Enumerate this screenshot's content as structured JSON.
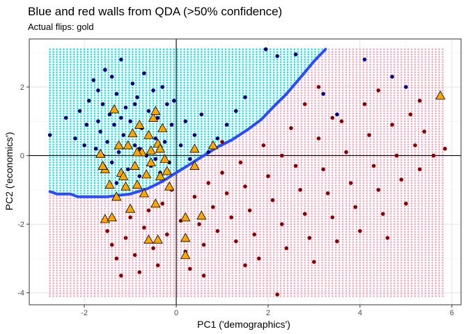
{
  "chart_data": {
    "type": "scatter",
    "title": "Blue and red walls from QDA (>50% confidence)",
    "subtitle": "Actual flips: gold",
    "xlabel": "PC1 ('demographics')",
    "ylabel": "PC2 ('economics')",
    "xlim": [
      -3.2,
      6.2
    ],
    "ylim": [
      -4.35,
      3.4
    ],
    "x_ticks": [
      -2,
      0,
      2,
      4,
      6
    ],
    "y_ticks": [
      -4,
      -2,
      0,
      2
    ],
    "grid": true,
    "reference_lines": {
      "x": 0,
      "y": 0
    },
    "colors": {
      "blue_region": "#00e5ee",
      "red_region": "#f4a3b8",
      "blue_points": "#000080",
      "red_points": "#8b0000",
      "flips": "#ffa500",
      "boundary": "#2b4bff"
    },
    "regions": {
      "x_range": [
        -2.75,
        5.85
      ],
      "y_range": [
        -4.1,
        3.1
      ],
      "step": 0.075
    },
    "boundary": [
      [
        -2.75,
        -1.05
      ],
      [
        -2.6,
        -1.12
      ],
      [
        -2.3,
        -1.12
      ],
      [
        -2.15,
        -1.2
      ],
      [
        -1.5,
        -1.2
      ],
      [
        -1.0,
        -1.12
      ],
      [
        -0.6,
        -0.95
      ],
      [
        -0.3,
        -0.75
      ],
      [
        0.0,
        -0.5
      ],
      [
        0.3,
        -0.25
      ],
      [
        0.6,
        0.0
      ],
      [
        0.9,
        0.25
      ],
      [
        1.2,
        0.45
      ],
      [
        1.55,
        0.75
      ],
      [
        1.85,
        1.05
      ],
      [
        2.1,
        1.4
      ],
      [
        2.4,
        1.8
      ],
      [
        2.75,
        2.35
      ],
      [
        3.0,
        2.75
      ],
      [
        3.25,
        3.1
      ]
    ],
    "series": [
      {
        "values": [
          [
            -2.75,
            0.6
          ],
          [
            -2.4,
            1.1
          ],
          [
            -2.2,
            0.5
          ],
          [
            -2.0,
            0.3
          ],
          [
            -1.9,
            1.6
          ],
          [
            -1.8,
            2.2
          ],
          [
            -1.75,
            0.2
          ],
          [
            -1.7,
            1.0
          ],
          [
            -1.65,
            0.7
          ],
          [
            -1.6,
            1.5
          ],
          [
            -1.55,
            2.5
          ],
          [
            -1.5,
            0.4
          ],
          [
            -1.45,
            1.2
          ],
          [
            -1.4,
            -0.2
          ],
          [
            -1.35,
            0.9
          ],
          [
            -1.3,
            1.8
          ],
          [
            -1.25,
            0.1
          ],
          [
            -1.2,
            2.8
          ],
          [
            -1.15,
            0.6
          ],
          [
            -1.1,
            1.4
          ],
          [
            -1.05,
            -0.4
          ],
          [
            -1.0,
            1.0
          ],
          [
            -0.95,
            2.1
          ],
          [
            -0.9,
            0.3
          ],
          [
            -0.85,
            1.7
          ],
          [
            -0.8,
            -0.6
          ],
          [
            -0.75,
            0.8
          ],
          [
            -0.7,
            2.4
          ],
          [
            -0.65,
            0.0
          ],
          [
            -0.6,
            1.3
          ],
          [
            -0.55,
            -0.3
          ],
          [
            -0.5,
            1.9
          ],
          [
            -0.45,
            0.5
          ],
          [
            -0.4,
            1.1
          ],
          [
            -0.35,
            -0.5
          ],
          [
            -0.3,
            2.0
          ],
          [
            -0.25,
            0.4
          ],
          [
            -0.2,
            1.5
          ],
          [
            -0.15,
            -0.2
          ],
          [
            -0.1,
            0.9
          ],
          [
            -0.05,
            1.6
          ],
          [
            0.1,
            0.3
          ],
          [
            0.2,
            1.0
          ],
          [
            0.3,
            -0.1
          ],
          [
            0.4,
            0.6
          ],
          [
            0.55,
            1.2
          ],
          [
            0.7,
            0.1
          ],
          [
            0.9,
            0.5
          ],
          [
            1.1,
            0.9
          ],
          [
            1.3,
            1.3
          ],
          [
            1.5,
            1.7
          ],
          [
            1.95,
            3.1
          ],
          [
            2.2,
            2.9
          ],
          [
            2.6,
            2.95
          ],
          [
            3.2,
            1.8
          ],
          [
            3.5,
            1.2
          ],
          [
            4.1,
            2.8
          ],
          [
            4.7,
            2.3
          ],
          [
            5.0,
            2.0
          ],
          [
            -1.3,
            -0.8
          ],
          [
            -1.6,
            0.0
          ],
          [
            -1.95,
            0.9
          ],
          [
            -2.1,
            1.3
          ],
          [
            -0.6,
            0.6
          ],
          [
            -0.9,
            1.5
          ],
          [
            -1.2,
            1.1
          ],
          [
            -1.7,
            1.9
          ],
          [
            -1.4,
            2.3
          ],
          [
            -0.8,
            0.2
          ],
          [
            -0.45,
            -0.1
          ]
        ]
      },
      {
        "values": [
          [
            -1.5,
            -2.2
          ],
          [
            -1.4,
            -2.6
          ],
          [
            -1.3,
            -3.0
          ],
          [
            -1.2,
            -3.5
          ],
          [
            -1.1,
            -2.4
          ],
          [
            -1.0,
            -1.8
          ],
          [
            -0.9,
            -2.9
          ],
          [
            -0.8,
            -3.4
          ],
          [
            -0.7,
            -2.1
          ],
          [
            -0.6,
            -1.6
          ],
          [
            -0.5,
            -2.7
          ],
          [
            -0.4,
            -3.2
          ],
          [
            -0.3,
            -1.4
          ],
          [
            -0.2,
            -2.3
          ],
          [
            -0.1,
            -1.0
          ],
          [
            0.1,
            -1.9
          ],
          [
            0.2,
            -2.8
          ],
          [
            0.3,
            -3.3
          ],
          [
            0.4,
            -1.2
          ],
          [
            0.5,
            -2.0
          ],
          [
            0.6,
            -2.6
          ],
          [
            0.7,
            -0.8
          ],
          [
            0.8,
            -1.5
          ],
          [
            0.9,
            -2.2
          ],
          [
            1.0,
            -0.5
          ],
          [
            1.1,
            -1.1
          ],
          [
            1.2,
            -1.8
          ],
          [
            1.3,
            -2.5
          ],
          [
            1.4,
            -0.2
          ],
          [
            1.5,
            -0.9
          ],
          [
            1.6,
            -1.6
          ],
          [
            1.7,
            -2.3
          ],
          [
            1.8,
            -3.0
          ],
          [
            1.9,
            0.3
          ],
          [
            2.0,
            -0.6
          ],
          [
            2.1,
            -1.3
          ],
          [
            2.2,
            -4.05
          ],
          [
            2.3,
            -2.0
          ],
          [
            2.4,
            -2.7
          ],
          [
            2.5,
            0.8
          ],
          [
            2.6,
            -0.3
          ],
          [
            2.7,
            -1.0
          ],
          [
            2.8,
            -1.7
          ],
          [
            2.9,
            -2.4
          ],
          [
            3.0,
            -3.1
          ],
          [
            3.1,
            0.5
          ],
          [
            3.2,
            -0.4
          ],
          [
            3.3,
            -1.1
          ],
          [
            3.4,
            -1.8
          ],
          [
            3.5,
            -2.5
          ],
          [
            3.6,
            1.0
          ],
          [
            3.7,
            0.1
          ],
          [
            3.8,
            -0.8
          ],
          [
            3.9,
            -1.5
          ],
          [
            4.0,
            -2.2
          ],
          [
            4.1,
            1.5
          ],
          [
            4.2,
            0.6
          ],
          [
            4.3,
            -0.3
          ],
          [
            4.4,
            -1.0
          ],
          [
            4.5,
            -1.7
          ],
          [
            4.6,
            -2.4
          ],
          [
            4.7,
            0.9
          ],
          [
            4.8,
            0.0
          ],
          [
            4.9,
            -0.7
          ],
          [
            5.0,
            -1.4
          ],
          [
            5.1,
            1.2
          ],
          [
            5.2,
            0.3
          ],
          [
            5.3,
            -0.4
          ],
          [
            5.4,
            0.7
          ],
          [
            5.6,
            0.0
          ],
          [
            5.85,
            0.2
          ],
          [
            2.8,
            1.5
          ],
          [
            3.4,
            1.1
          ],
          [
            4.4,
            1.9
          ],
          [
            5.3,
            1.6
          ],
          [
            1.0,
            0.4
          ],
          [
            2.3,
            0.0
          ],
          [
            3.1,
            2.0
          ],
          [
            0.6,
            -3.5
          ],
          [
            1.5,
            -3.2
          ]
        ]
      },
      {
        "values": [
          [
            -1.55,
            -1.85
          ],
          [
            -1.4,
            -1.8
          ],
          [
            -1.35,
            1.35
          ],
          [
            -1.25,
            0.3
          ],
          [
            -1.2,
            -0.5
          ],
          [
            -1.1,
            -0.9
          ],
          [
            -0.95,
            0.65
          ],
          [
            -0.9,
            -0.3
          ],
          [
            -0.85,
            -0.85
          ],
          [
            -0.8,
            0.9
          ],
          [
            -0.75,
            0.1
          ],
          [
            -0.7,
            -1.1
          ],
          [
            -0.65,
            -0.55
          ],
          [
            -0.6,
            0.6
          ],
          [
            -0.55,
            -0.2
          ],
          [
            -0.5,
            1.1
          ],
          [
            -0.45,
            -1.4
          ],
          [
            -0.4,
            0.35
          ],
          [
            -0.35,
            -0.6
          ],
          [
            -0.3,
            0.8
          ],
          [
            -0.25,
            -0.1
          ],
          [
            -0.2,
            -0.45
          ],
          [
            -0.15,
            -0.9
          ],
          [
            -0.6,
            -2.45
          ],
          [
            -0.4,
            -2.45
          ],
          [
            -1.0,
            -1.55
          ],
          [
            -1.3,
            -1.2
          ],
          [
            -1.45,
            -0.85
          ],
          [
            -1.55,
            -0.4
          ],
          [
            -1.65,
            0.05
          ],
          [
            -1.6,
            -0.3
          ],
          [
            -1.05,
            0.3
          ],
          [
            0.2,
            -1.8
          ],
          [
            0.2,
            -2.4
          ],
          [
            0.2,
            -2.9
          ],
          [
            0.55,
            -1.75
          ],
          [
            0.4,
            -0.3
          ],
          [
            0.4,
            0.2
          ],
          [
            0.8,
            0.3
          ],
          [
            -0.45,
            1.3
          ],
          [
            -0.35,
            0.2
          ],
          [
            -0.55,
            0.15
          ],
          [
            -0.85,
            0.1
          ],
          [
            -1.15,
            -0.6
          ],
          [
            5.75,
            1.75
          ]
        ]
      }
    ]
  }
}
